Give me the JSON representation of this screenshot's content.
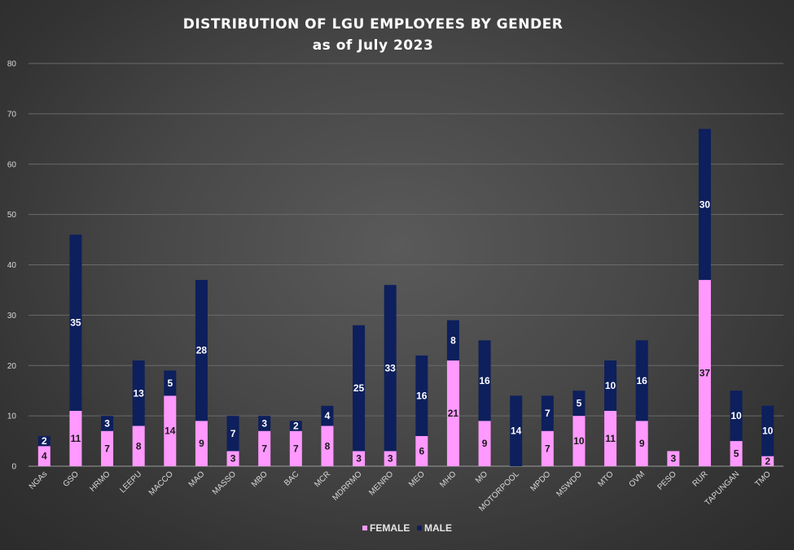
{
  "chart_data": {
    "type": "bar",
    "stacked": true,
    "title": "DISTRIBUTION  OF LGU EMPLOYEES  BY GENDER",
    "subtitle": "as of July 2023",
    "categories": [
      "NGAs",
      "GSO",
      "HRMO",
      "LEEPU",
      "MACCO",
      "MAO",
      "MASSO",
      "MBO",
      "BAC",
      "MCR",
      "MDRRMO",
      "MENRO",
      "MEO",
      "MHO",
      "MO",
      "MOTORPOOL",
      "MPDO",
      "MSWDO",
      "MTO",
      "OVM",
      "PESO",
      "RUR",
      "TAPUNGAN",
      "TMO"
    ],
    "series": [
      {
        "name": "FEMALE",
        "color": "#ff99ff",
        "values": [
          4,
          11,
          7,
          8,
          14,
          9,
          3,
          7,
          7,
          8,
          3,
          3,
          6,
          21,
          9,
          0,
          7,
          10,
          11,
          9,
          3,
          37,
          5,
          2
        ]
      },
      {
        "name": "MALE",
        "color": "#0d1f5c",
        "values": [
          2,
          35,
          3,
          13,
          5,
          28,
          7,
          3,
          2,
          4,
          25,
          33,
          16,
          8,
          16,
          14,
          7,
          5,
          10,
          16,
          0,
          30,
          10,
          10
        ]
      }
    ],
    "ylim": [
      0,
      80
    ],
    "yticks": [
      0,
      10,
      20,
      30,
      40,
      50,
      60,
      70,
      80
    ],
    "grid": true,
    "legend_position": "bottom"
  }
}
